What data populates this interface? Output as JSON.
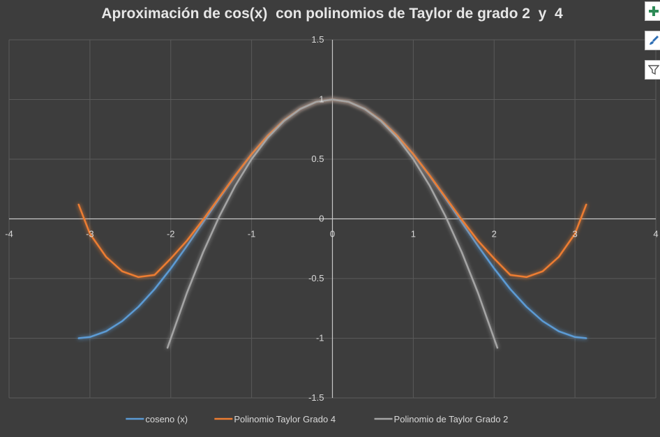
{
  "chart_data": {
    "type": "line",
    "title": "Aproximación de cos(x)  con polinomios de Taylor de grado 2  y  4",
    "xlim": [
      -4,
      4
    ],
    "ylim": [
      -1.5,
      1.5
    ],
    "x_ticks": [
      -4,
      -3,
      -2,
      -1,
      0,
      1,
      2,
      3,
      4
    ],
    "y_ticks": [
      -1.5,
      -1,
      -0.5,
      0,
      0.5,
      1,
      1.5
    ],
    "x_tick_labels": [
      "-4",
      "-3",
      "-2",
      "-1",
      "0",
      "1",
      "2",
      "3",
      "4"
    ],
    "y_tick_labels": [
      "-1.5",
      "-1",
      "-0.5",
      "0",
      "0.5",
      "1",
      "1.5"
    ],
    "grid": true,
    "legend_position": "bottom",
    "series": [
      {
        "name": "coseno (x)",
        "color": "#5b9bd5",
        "x": [
          -3.14,
          -3.0,
          -2.8,
          -2.6,
          -2.4,
          -2.2,
          -2.0,
          -1.8,
          -1.6,
          -1.4,
          -1.2,
          -1.0,
          -0.8,
          -0.6,
          -0.4,
          -0.2,
          0,
          0.2,
          0.4,
          0.6,
          0.8,
          1.0,
          1.2,
          1.4,
          1.6,
          1.8,
          2.0,
          2.2,
          2.4,
          2.6,
          2.8,
          3.0,
          3.14
        ],
        "y": [
          -1.0,
          -0.99,
          -0.942,
          -0.857,
          -0.737,
          -0.589,
          -0.416,
          -0.227,
          -0.029,
          0.17,
          0.362,
          0.54,
          0.697,
          0.825,
          0.921,
          0.98,
          1.0,
          0.98,
          0.921,
          0.825,
          0.697,
          0.54,
          0.362,
          0.17,
          -0.029,
          -0.227,
          -0.416,
          -0.589,
          -0.737,
          -0.857,
          -0.942,
          -0.99,
          -1.0
        ]
      },
      {
        "name": "Polinomio Taylor Grado 4",
        "color": "#ed7d31",
        "x": [
          -3.14,
          -3.0,
          -2.8,
          -2.6,
          -2.4,
          -2.2,
          -2.0,
          -1.8,
          -1.6,
          -1.4,
          -1.2,
          -1.0,
          -0.8,
          -0.6,
          -0.4,
          -0.2,
          0,
          0.2,
          0.4,
          0.6,
          0.8,
          1.0,
          1.2,
          1.4,
          1.6,
          1.8,
          2.0,
          2.2,
          2.4,
          2.6,
          2.8,
          3.0,
          3.14
        ],
        "y": [
          0.12,
          -0.125,
          -0.319,
          -0.44,
          -0.488,
          -0.47,
          -0.333,
          -0.183,
          -0.007,
          0.18,
          0.366,
          0.542,
          0.697,
          0.825,
          0.921,
          0.98,
          1.0,
          0.98,
          0.921,
          0.825,
          0.697,
          0.542,
          0.366,
          0.18,
          -0.007,
          -0.183,
          -0.333,
          -0.47,
          -0.488,
          -0.44,
          -0.319,
          -0.125,
          0.12
        ]
      },
      {
        "name": "Polinomio de Taylor Grado 2",
        "color": "#a5a5a5",
        "x": [
          -2.04,
          -1.8,
          -1.6,
          -1.4,
          -1.2,
          -1.0,
          -0.8,
          -0.6,
          -0.4,
          -0.2,
          0,
          0.2,
          0.4,
          0.6,
          0.8,
          1.0,
          1.2,
          1.4,
          1.6,
          1.8,
          2.04
        ],
        "y": [
          -1.08,
          -0.62,
          -0.28,
          0.02,
          0.28,
          0.5,
          0.68,
          0.82,
          0.92,
          0.98,
          1.0,
          0.98,
          0.92,
          0.82,
          0.68,
          0.5,
          0.28,
          0.02,
          -0.28,
          -0.62,
          -1.08
        ]
      }
    ]
  },
  "ui": {
    "side_buttons": [
      {
        "icon": "plus-icon",
        "color": "#2e8b57"
      },
      {
        "icon": "paintbrush-icon",
        "color": "#2f6fb5"
      },
      {
        "icon": "filter-icon",
        "color": "#555555"
      }
    ],
    "colors": {
      "background": "#3d3d3d",
      "gridline": "#5a5a5a",
      "axis": "#c8c8c8",
      "text": "#d9d9d9"
    }
  }
}
